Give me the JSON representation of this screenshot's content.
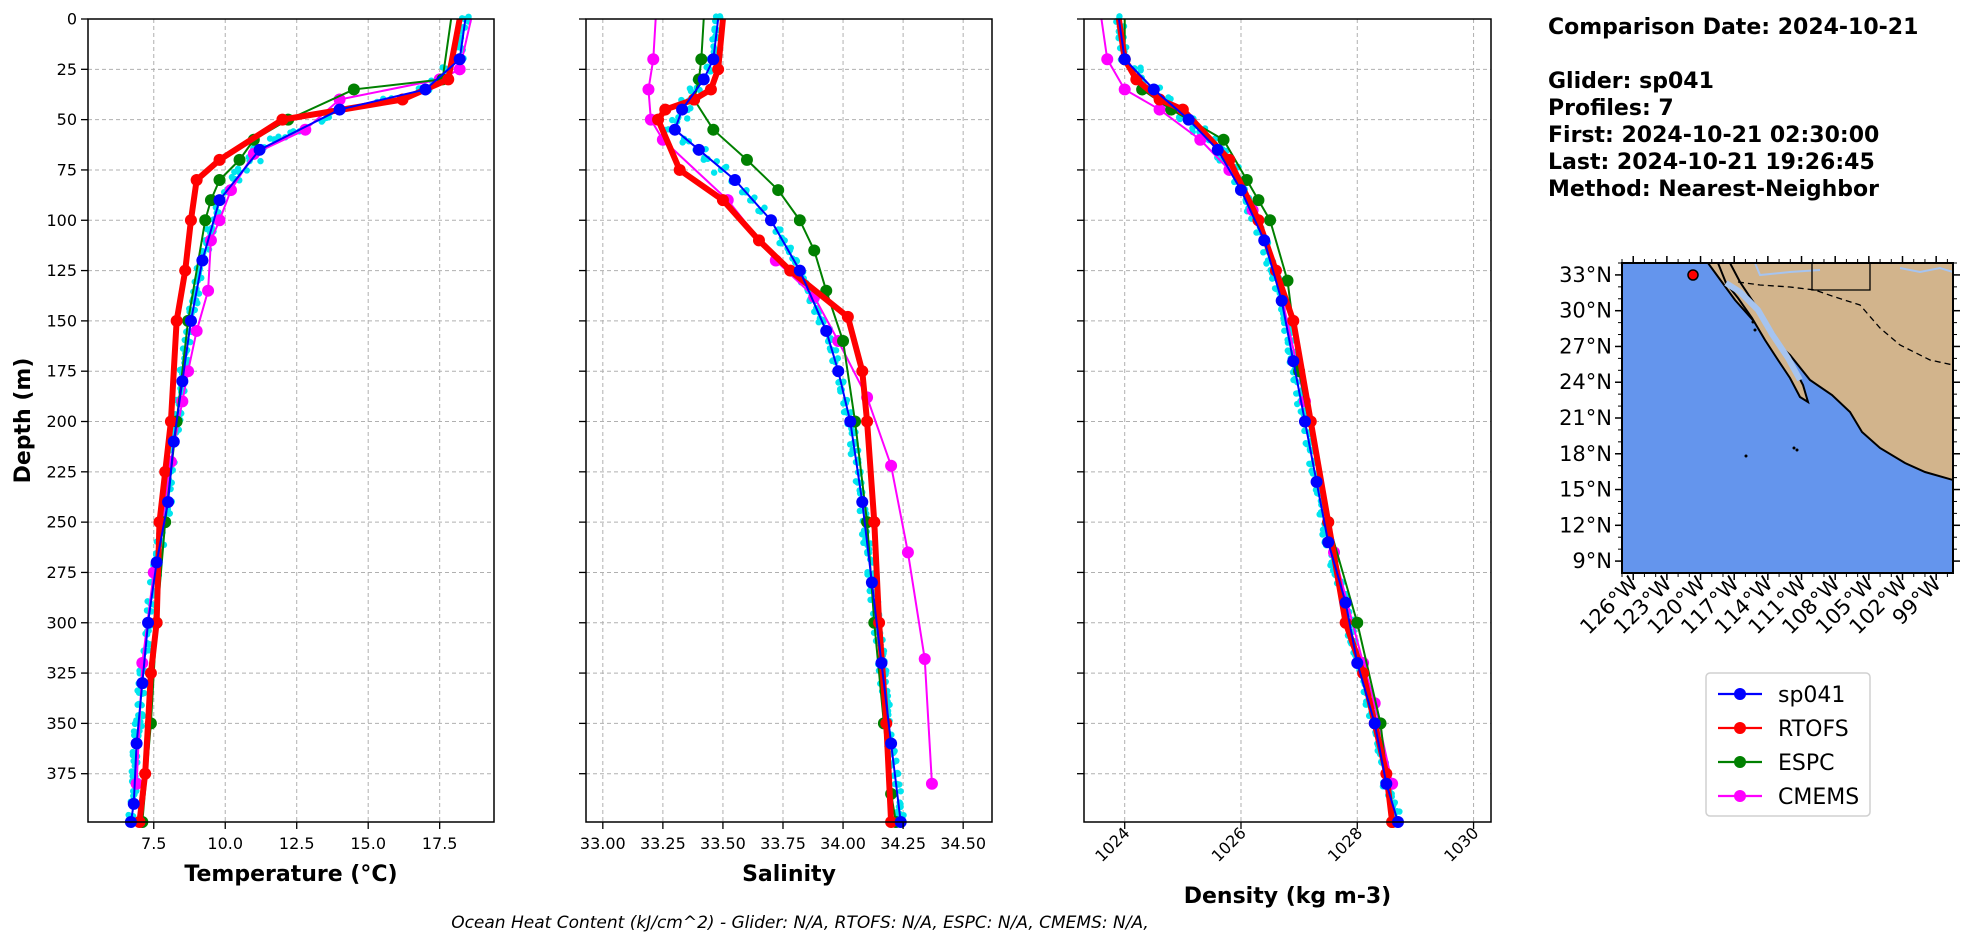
{
  "info": {
    "comparison_date": "Comparison Date: 2024-10-21",
    "glider": "Glider: sp041",
    "profiles": "Profiles: 7",
    "first": "First: 2024-10-21 02:30:00",
    "last": "Last: 2024-10-21 19:26:45",
    "method": "Method: Nearest-Neighbor"
  },
  "footer": "Ocean Heat Content (kJ/cm^2) - Glider: N/A,  RTOFS: N/A,  ESPC: N/A,  CMEMS: N/A,",
  "colors": {
    "sp041": "#0000ff",
    "RTOFS": "#ff0000",
    "ESPC": "#008000",
    "CMEMS": "#ff00ff",
    "glider_raw": "#00e5ee",
    "ocean": "#6495ed",
    "land": "#d2b48c",
    "shallow": "#a6c4f0"
  },
  "chart_data": [
    {
      "type": "line",
      "title": "",
      "xlabel": "Temperature (°C)",
      "ylabel": "Depth (m)",
      "xlim": [
        5.2,
        19.4
      ],
      "ylim": [
        399,
        0
      ],
      "y_inverted": true,
      "grid": true,
      "xticks": [
        7.5,
        10.0,
        12.5,
        15.0,
        17.5
      ],
      "xtick_labels": [
        "7.5",
        "10.0",
        "12.5",
        "15.0",
        "17.5"
      ],
      "yticks": [
        0,
        25,
        50,
        75,
        100,
        125,
        150,
        175,
        200,
        225,
        250,
        275,
        300,
        325,
        350,
        375
      ],
      "series": [
        {
          "name": "sp041",
          "x": [
            18.4,
            18.2,
            17.0,
            14.0,
            11.2,
            9.8,
            9.2,
            8.8,
            8.5,
            8.2,
            8.0,
            7.6,
            7.3,
            7.1,
            6.9,
            6.8,
            6.7
          ],
          "y": [
            0,
            20,
            35,
            45,
            65,
            90,
            120,
            150,
            180,
            210,
            240,
            270,
            300,
            330,
            360,
            390,
            399
          ]
        },
        {
          "name": "RTOFS",
          "x": [
            18.2,
            17.8,
            16.2,
            12.0,
            9.8,
            9.0,
            8.8,
            8.6,
            8.3,
            8.1,
            7.9,
            7.7,
            7.6,
            7.4,
            7.2,
            7.0
          ],
          "y": [
            0,
            30,
            40,
            50,
            70,
            80,
            100,
            125,
            150,
            200,
            225,
            250,
            300,
            325,
            375,
            399
          ]
        },
        {
          "name": "ESPC",
          "x": [
            17.9,
            17.6,
            14.5,
            12.2,
            11.0,
            10.5,
            9.8,
            9.5,
            9.3,
            8.7,
            8.3,
            7.9,
            7.6,
            7.4,
            7.1
          ],
          "y": [
            0,
            30,
            35,
            50,
            60,
            70,
            80,
            90,
            100,
            150,
            200,
            250,
            300,
            350,
            399
          ]
        },
        {
          "name": "CMEMS",
          "x": [
            18.6,
            18.2,
            17.5,
            14.0,
            12.8,
            11.0,
            10.2,
            9.8,
            9.5,
            9.4,
            9.0,
            8.7,
            8.5,
            8.1,
            7.8,
            7.5,
            7.1,
            6.9
          ],
          "y": [
            0,
            25,
            30,
            40,
            55,
            67,
            85,
            100,
            110,
            135,
            155,
            175,
            190,
            220,
            250,
            275,
            320,
            380
          ]
        }
      ]
    },
    {
      "type": "line",
      "title": "",
      "xlabel": "Salinity",
      "ylabel": "",
      "xlim": [
        32.93,
        34.62
      ],
      "ylim": [
        399,
        0
      ],
      "y_inverted": true,
      "grid": true,
      "xticks": [
        33.0,
        33.25,
        33.5,
        33.75,
        34.0,
        34.25,
        34.5
      ],
      "xtick_labels": [
        "33.00",
        "33.25",
        "33.50",
        "33.75",
        "34.00",
        "34.25",
        "34.50"
      ],
      "yticks": [
        0,
        25,
        50,
        75,
        100,
        125,
        150,
        175,
        200,
        225,
        250,
        275,
        300,
        325,
        350,
        375
      ],
      "series": [
        {
          "name": "sp041",
          "x": [
            33.48,
            33.46,
            33.42,
            33.33,
            33.3,
            33.4,
            33.55,
            33.7,
            33.82,
            33.93,
            33.98,
            34.03,
            34.08,
            34.12,
            34.16,
            34.2,
            34.24
          ],
          "y": [
            0,
            20,
            30,
            45,
            55,
            65,
            80,
            100,
            125,
            155,
            175,
            200,
            240,
            280,
            320,
            360,
            399
          ]
        },
        {
          "name": "RTOFS",
          "x": [
            33.5,
            33.48,
            33.45,
            33.38,
            33.26,
            33.23,
            33.32,
            33.5,
            33.65,
            33.78,
            34.02,
            34.08,
            34.1,
            34.13,
            34.15,
            34.18,
            34.2
          ],
          "y": [
            0,
            25,
            35,
            40,
            45,
            50,
            75,
            90,
            110,
            125,
            148,
            175,
            200,
            250,
            300,
            350,
            399
          ]
        },
        {
          "name": "ESPC",
          "x": [
            33.42,
            33.41,
            33.4,
            33.38,
            33.46,
            33.6,
            33.73,
            33.82,
            33.88,
            33.93,
            34.0,
            34.05,
            34.1,
            34.13,
            34.17,
            34.2,
            34.22
          ],
          "y": [
            0,
            20,
            30,
            40,
            55,
            70,
            85,
            100,
            115,
            135,
            160,
            200,
            250,
            300,
            350,
            385,
            399
          ]
        },
        {
          "name": "CMEMS",
          "x": [
            33.22,
            33.21,
            33.19,
            33.2,
            33.25,
            33.52,
            33.72,
            33.88,
            33.98,
            34.1,
            34.2,
            34.27,
            34.34,
            34.37
          ],
          "y": [
            0,
            20,
            35,
            50,
            60,
            90,
            120,
            138,
            160,
            188,
            222,
            265,
            318,
            380
          ]
        }
      ]
    },
    {
      "type": "line",
      "title": "",
      "xlabel": "Density (kg m-3)",
      "ylabel": "",
      "xlim": [
        1023.3,
        1030.3
      ],
      "ylim": [
        399,
        0
      ],
      "y_inverted": true,
      "grid": true,
      "xticks": [
        1024,
        1026,
        1028,
        1030
      ],
      "xtick_labels": [
        "1024",
        "1026",
        "1028",
        "1030"
      ],
      "yticks": [
        0,
        25,
        50,
        75,
        100,
        125,
        150,
        175,
        200,
        225,
        250,
        275,
        300,
        325,
        350,
        375
      ],
      "series": [
        {
          "name": "sp041",
          "x": [
            1023.9,
            1024.0,
            1024.5,
            1025.1,
            1025.6,
            1026.0,
            1026.4,
            1026.7,
            1026.9,
            1027.1,
            1027.3,
            1027.5,
            1027.8,
            1028.0,
            1028.3,
            1028.5,
            1028.7
          ],
          "y": [
            0,
            20,
            35,
            50,
            65,
            85,
            110,
            140,
            170,
            200,
            230,
            260,
            290,
            320,
            350,
            380,
            399
          ]
        },
        {
          "name": "RTOFS",
          "x": [
            1023.9,
            1024.0,
            1024.2,
            1024.6,
            1025.0,
            1025.8,
            1026.3,
            1026.6,
            1026.9,
            1027.2,
            1027.5,
            1027.8,
            1028.1,
            1028.3,
            1028.5,
            1028.6
          ],
          "y": [
            0,
            20,
            30,
            40,
            45,
            70,
            100,
            125,
            150,
            200,
            250,
            300,
            325,
            350,
            375,
            399
          ]
        },
        {
          "name": "ESPC",
          "x": [
            1024.0,
            1024.0,
            1024.3,
            1024.8,
            1025.7,
            1026.1,
            1026.3,
            1026.5,
            1026.8,
            1027.0,
            1027.5,
            1028.0,
            1028.4,
            1028.6
          ],
          "y": [
            0,
            20,
            35,
            45,
            60,
            80,
            90,
            100,
            130,
            175,
            250,
            300,
            350,
            399
          ]
        },
        {
          "name": "CMEMS",
          "x": [
            1023.6,
            1023.7,
            1024.0,
            1024.6,
            1025.3,
            1025.8,
            1026.2,
            1026.6,
            1027.1,
            1027.6,
            1028.1,
            1028.3,
            1028.6
          ],
          "y": [
            0,
            20,
            35,
            45,
            60,
            75,
            95,
            125,
            190,
            265,
            320,
            340,
            380
          ]
        }
      ]
    },
    {
      "type": "map",
      "title": "",
      "lat_ticks": [
        "33°N",
        "30°N",
        "27°N",
        "24°N",
        "21°N",
        "18°N",
        "15°N",
        "12°N",
        "9°N"
      ],
      "lon_ticks": [
        "126°W",
        "123°W",
        "120°W",
        "117°W",
        "114°W",
        "111°W",
        "108°W",
        "105°W",
        "102°W",
        "99°W"
      ],
      "extent": {
        "lon_min": -127,
        "lon_max": -97.5,
        "lat_min": 8,
        "lat_max": 34
      },
      "glider_position": {
        "lon": -121,
        "lat": 32.7
      }
    }
  ],
  "legend": {
    "placement": "below-map",
    "entries": [
      "sp041",
      "RTOFS",
      "ESPC",
      "CMEMS"
    ]
  }
}
